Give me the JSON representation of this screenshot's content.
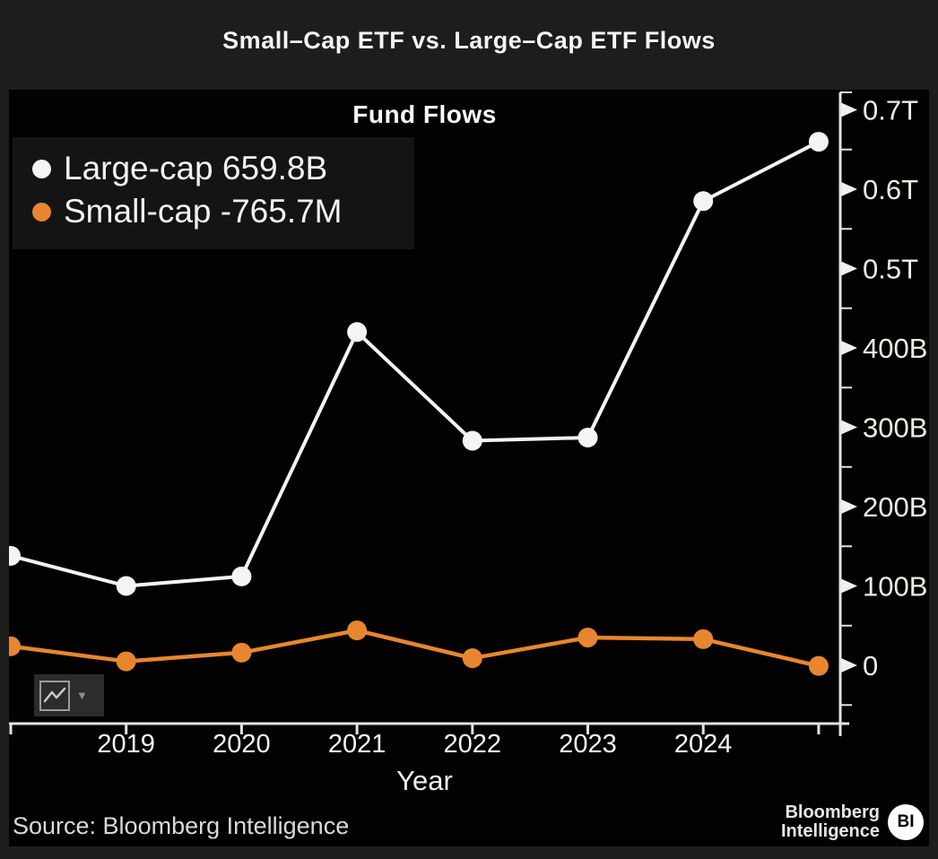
{
  "title": "Small–Cap ETF vs. Large–Cap ETF Flows",
  "source": "Source: Bloomberg Intelligence",
  "logo": {
    "line1": "Bloomberg",
    "line2": "Intelligence",
    "badge": "BI"
  },
  "colors": {
    "background": "#1d1d1d",
    "panel": "#020202",
    "legend_background": "#141414",
    "axis": "#e2e2e2",
    "large_cap": "#f4f4f4",
    "small_cap": "#e8862f"
  },
  "chart_data": {
    "type": "line",
    "title": "Fund Flows",
    "xlabel": "Year",
    "ylabel": "",
    "x": [
      2018,
      2019,
      2020,
      2021,
      2022,
      2023,
      2024,
      2025
    ],
    "x_tick_labels": [
      "2019",
      "2020",
      "2021",
      "2022",
      "2023",
      "2024"
    ],
    "series": [
      {
        "name": "Large-cap",
        "legend_label": "Large-cap 659.8B",
        "color": "#f4f4f4",
        "unit": "billions USD",
        "values": [
          138,
          100,
          112,
          420,
          283,
          287,
          585,
          659.8
        ]
      },
      {
        "name": "Small-cap",
        "legend_label": "Small-cap -765.7M",
        "color": "#e8862f",
        "unit": "billions USD",
        "values": [
          24,
          5,
          16,
          44,
          9,
          35,
          33,
          -0.77
        ]
      }
    ],
    "y_ticks": [
      {
        "value": 0,
        "label": "0"
      },
      {
        "value": 100,
        "label": "100B"
      },
      {
        "value": 200,
        "label": "200B"
      },
      {
        "value": 300,
        "label": "300B"
      },
      {
        "value": 400,
        "label": "400B"
      },
      {
        "value": 500,
        "label": "0.5T"
      },
      {
        "value": 600,
        "label": "0.6T"
      },
      {
        "value": 700,
        "label": "0.7T"
      }
    ],
    "y_minor_ticks": [
      -50,
      50,
      150,
      250,
      350,
      450,
      550,
      650
    ],
    "ylim": [
      -60,
      730
    ],
    "grid": false,
    "legend_position": "top-left"
  }
}
